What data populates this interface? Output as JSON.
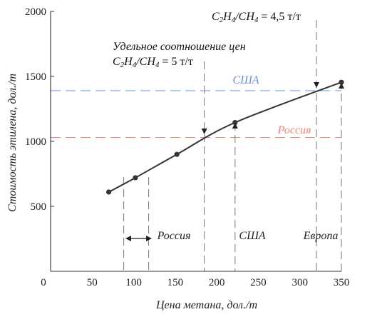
{
  "chart_data": {
    "type": "line",
    "xlabel": "Цена метана, дол./т",
    "ylabel": "Стоимость этилена, дол./т",
    "xlim": [
      0,
      350
    ],
    "ylim": [
      0,
      2000
    ],
    "x_ticks": [
      "0",
      "50",
      "100",
      "150",
      "200",
      "250",
      "300",
      "350"
    ],
    "y_ticks": [
      "500",
      "1000",
      "1500",
      "2000"
    ],
    "grid": false,
    "series": [
      {
        "x": [
          70,
          102,
          152,
          222,
          350
        ],
        "y": [
          610,
          720,
          900,
          1145,
          1455
        ]
      }
    ],
    "reference_lines": [
      {
        "label": "США",
        "y": 1390,
        "color": "#6b8fd6"
      },
      {
        "label": "Россия",
        "y": 1030,
        "color": "#e58a7a"
      }
    ],
    "vertical_lines": [
      {
        "x": 88,
        "marker": "none"
      },
      {
        "x": 118,
        "marker": "none"
      },
      {
        "x": 185,
        "marker": "arrow-down"
      },
      {
        "x": 222,
        "marker": "triangle-up"
      },
      {
        "x": 320,
        "marker": "arrow-down"
      },
      {
        "x": 350,
        "marker": "triangle-up"
      }
    ],
    "annotations": [
      {
        "id": "ratio5-line1",
        "text": "Удельное соотношение цен"
      },
      {
        "id": "ratio5-line2",
        "text": "C2H4/CH4 = 5 т/т"
      },
      {
        "id": "ratio45",
        "text": "C2H4/CH4 = 4,5 т/т"
      }
    ],
    "regions": [
      "Россия",
      "США",
      "Европа"
    ],
    "colors": {
      "curve": "#333333",
      "axis": "#333333",
      "vline": "#777777"
    }
  }
}
